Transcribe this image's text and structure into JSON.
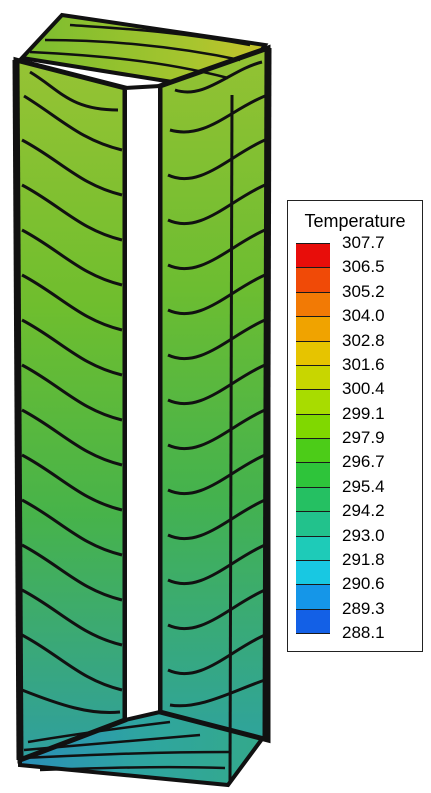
{
  "legend": {
    "title": "Temperature",
    "levels": [
      "307.7",
      "306.5",
      "305.2",
      "304.0",
      "302.8",
      "301.6",
      "300.4",
      "299.1",
      "297.9",
      "296.7",
      "295.4",
      "294.2",
      "293.0",
      "291.8",
      "290.6",
      "289.3",
      "288.1"
    ],
    "colors": [
      "#e80d0a",
      "#f04a07",
      "#f27a05",
      "#f0a300",
      "#e6c400",
      "#c8d600",
      "#a8dc00",
      "#80d800",
      "#4ccc18",
      "#2ec43a",
      "#25c062",
      "#22c28c",
      "#1ecbb8",
      "#18c8e2",
      "#1596e8",
      "#1360e6",
      "#1020e6"
    ]
  },
  "field": {
    "top_color": "#a2c43a",
    "upper_color": "#7cc02c",
    "mid_color": "#4cb444",
    "lower_color": "#3aa870",
    "bottom_color": "#2c9aa0",
    "contour_color": "#111111"
  }
}
